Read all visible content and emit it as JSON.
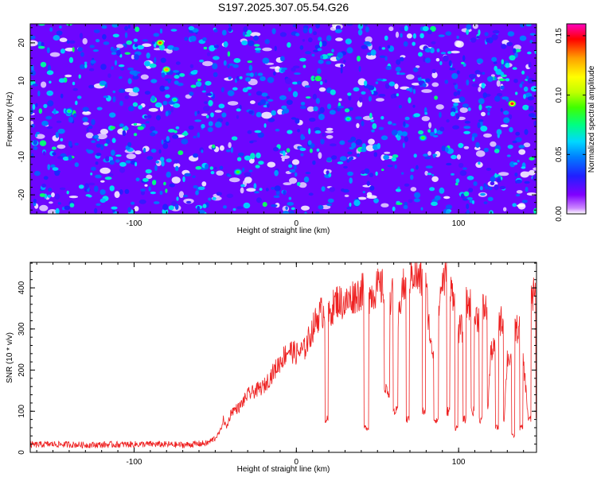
{
  "title": "S197.2025.307.05.54.G26",
  "chart_data": [
    {
      "type": "heatmap",
      "id": "spectrogram",
      "xlabel": "Height of straight line (km)",
      "ylabel": "Frequency (Hz)",
      "xlim": [
        -164,
        148
      ],
      "ylim": [
        -25,
        25
      ],
      "xticks": [
        -100,
        0,
        100
      ],
      "yticks": [
        -20,
        -10,
        0,
        10,
        20
      ],
      "colorbar": {
        "label": "Normalized spectral amplitude",
        "range": [
          0,
          0.16
        ],
        "ticks": [
          0,
          0.05,
          0.1,
          0.15
        ],
        "tick_labels": [
          "0.00",
          "0.05",
          "0.10",
          "0.15"
        ],
        "colors": [
          "#ffffff",
          "#cc88ff",
          "#8000ff",
          "#2020ff",
          "#0080ff",
          "#00d8ff",
          "#00ff80",
          "#40ff00",
          "#c0ff00",
          "#ffff00",
          "#ffa000",
          "#ff0000",
          "#ff00c0"
        ]
      },
      "distribution": "dense random speckle; typical amplitude 0.01-0.05, occasional peaks to 0.15",
      "peaks": [
        {
          "x": -84,
          "y": 20,
          "value": 0.14
        },
        {
          "x": -80,
          "y": 13,
          "value": 0.13
        },
        {
          "x": 133,
          "y": 4,
          "value": 0.15
        },
        {
          "x": -36,
          "y": -14,
          "value": 0.09
        },
        {
          "x": 32,
          "y": 0,
          "value": 0.08
        },
        {
          "x": 78,
          "y": -5,
          "value": 0.09
        },
        {
          "x": -140,
          "y": 2,
          "value": 0.08
        },
        {
          "x": -75,
          "y": 5,
          "value": 0.08
        }
      ]
    },
    {
      "type": "line",
      "id": "snr",
      "xlabel": "Height of straight line (km)",
      "ylabel": "SNR (10 * v/v)",
      "xlim": [
        -164,
        148
      ],
      "ylim": [
        0,
        462
      ],
      "xticks": [
        -100,
        0,
        100
      ],
      "yticks": [
        0,
        100,
        200,
        300,
        400
      ],
      "color": "#ee2222",
      "series": [
        {
          "name": "SNR",
          "x": [
            -164,
            -150,
            -130,
            -110,
            -90,
            -70,
            -55,
            -50,
            -47,
            -45,
            -43,
            -40,
            -35,
            -30,
            -25,
            -20,
            -15,
            -10,
            -5,
            0,
            5,
            10,
            12,
            15,
            18,
            20,
            22,
            25,
            30,
            35,
            40,
            42,
            45,
            50,
            55,
            58,
            60,
            63,
            65,
            68,
            70,
            72,
            75,
            78,
            80,
            83,
            85,
            88,
            90,
            93,
            95,
            98,
            100,
            103,
            105,
            108,
            110,
            113,
            115,
            118,
            120,
            123,
            125,
            128,
            130,
            133,
            135,
            138,
            140,
            143,
            145,
            148
          ],
          "y": [
            18,
            20,
            18,
            19,
            20,
            18,
            22,
            35,
            50,
            80,
            60,
            100,
            110,
            140,
            150,
            160,
            190,
            220,
            250,
            240,
            250,
            300,
            320,
            340,
            80,
            330,
            350,
            370,
            360,
            380,
            390,
            60,
            380,
            400,
            150,
            380,
            100,
            320,
            400,
            80,
            430,
            440,
            420,
            100,
            400,
            250,
            80,
            360,
            420,
            100,
            390,
            60,
            300,
            80,
            360,
            100,
            330,
            80,
            350,
            110,
            250,
            60,
            320,
            80,
            230,
            40,
            300,
            60,
            220,
            80,
            380,
            80
          ]
        }
      ]
    }
  ]
}
